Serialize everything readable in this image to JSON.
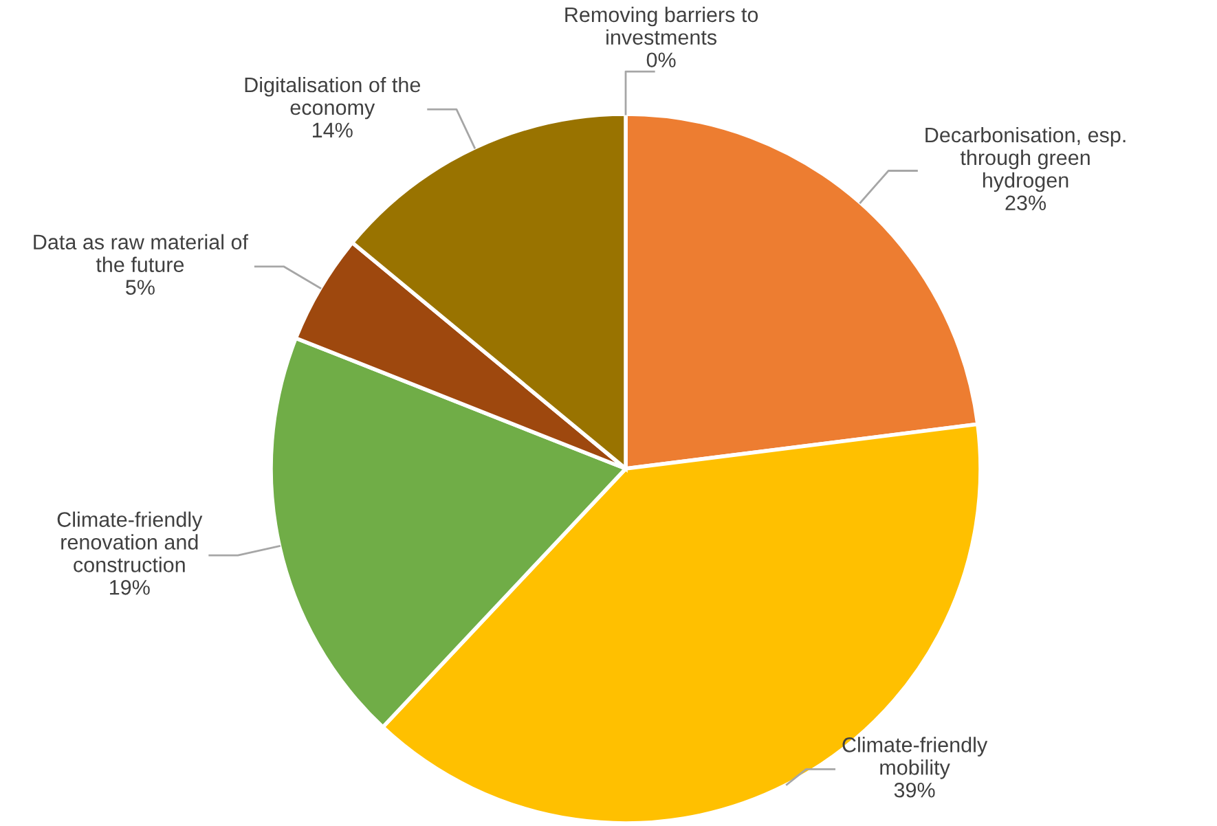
{
  "chart_data": {
    "type": "pie",
    "categories": [
      "Removing barriers to\ninvestments",
      "Decarbonisation, esp.\nthrough green\nhydrogen",
      "Climate-friendly\nmobility",
      "Climate-friendly\nrenovation and\nconstruction",
      "Data as raw material of\nthe future",
      "Digitalisation of the\neconomy"
    ],
    "values": [
      0,
      23,
      39,
      19,
      5,
      14
    ],
    "value_labels": [
      "0%",
      "23%",
      "39%",
      "19%",
      "5%",
      "14%"
    ],
    "colors": [
      "#5b9bd5",
      "#ed7d31",
      "#ffc000",
      "#70ad47",
      "#9e480e",
      "#997300"
    ],
    "legend": false
  }
}
